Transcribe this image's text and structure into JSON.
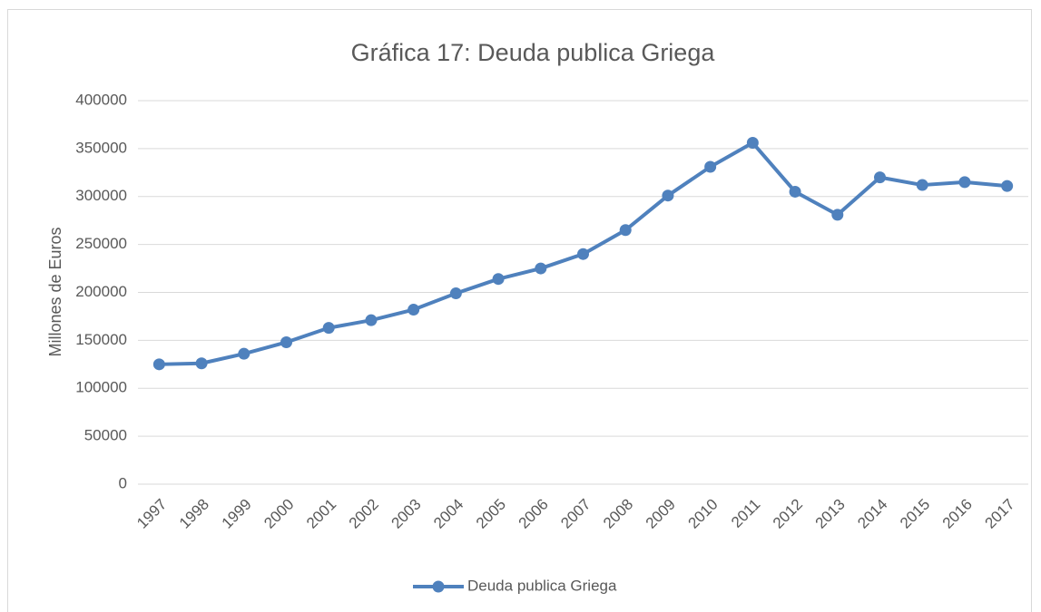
{
  "chart_data": {
    "type": "line",
    "title": "Gráfica 17: Deuda publica Griega",
    "y_label": "Millones de Euros",
    "categories": [
      "1997",
      "1998",
      "1999",
      "2000",
      "2001",
      "2002",
      "2003",
      "2004",
      "2005",
      "2006",
      "2007",
      "2008",
      "2009",
      "2010",
      "2011",
      "2012",
      "2013",
      "2014",
      "2015",
      "2016",
      "2017"
    ],
    "series": [
      {
        "name": "Deuda publica Griega",
        "color": "#4f81bd",
        "values": [
          125000,
          126000,
          136000,
          148000,
          163000,
          171000,
          182000,
          199000,
          214000,
          225000,
          240000,
          265000,
          301000,
          331000,
          356000,
          305000,
          281000,
          320000,
          312000,
          315000,
          311000
        ]
      }
    ],
    "ylim": [
      0,
      400000
    ],
    "yticks": [
      0,
      50000,
      100000,
      150000,
      200000,
      250000,
      300000,
      350000,
      400000
    ],
    "grid": true,
    "legend": "bottom"
  }
}
